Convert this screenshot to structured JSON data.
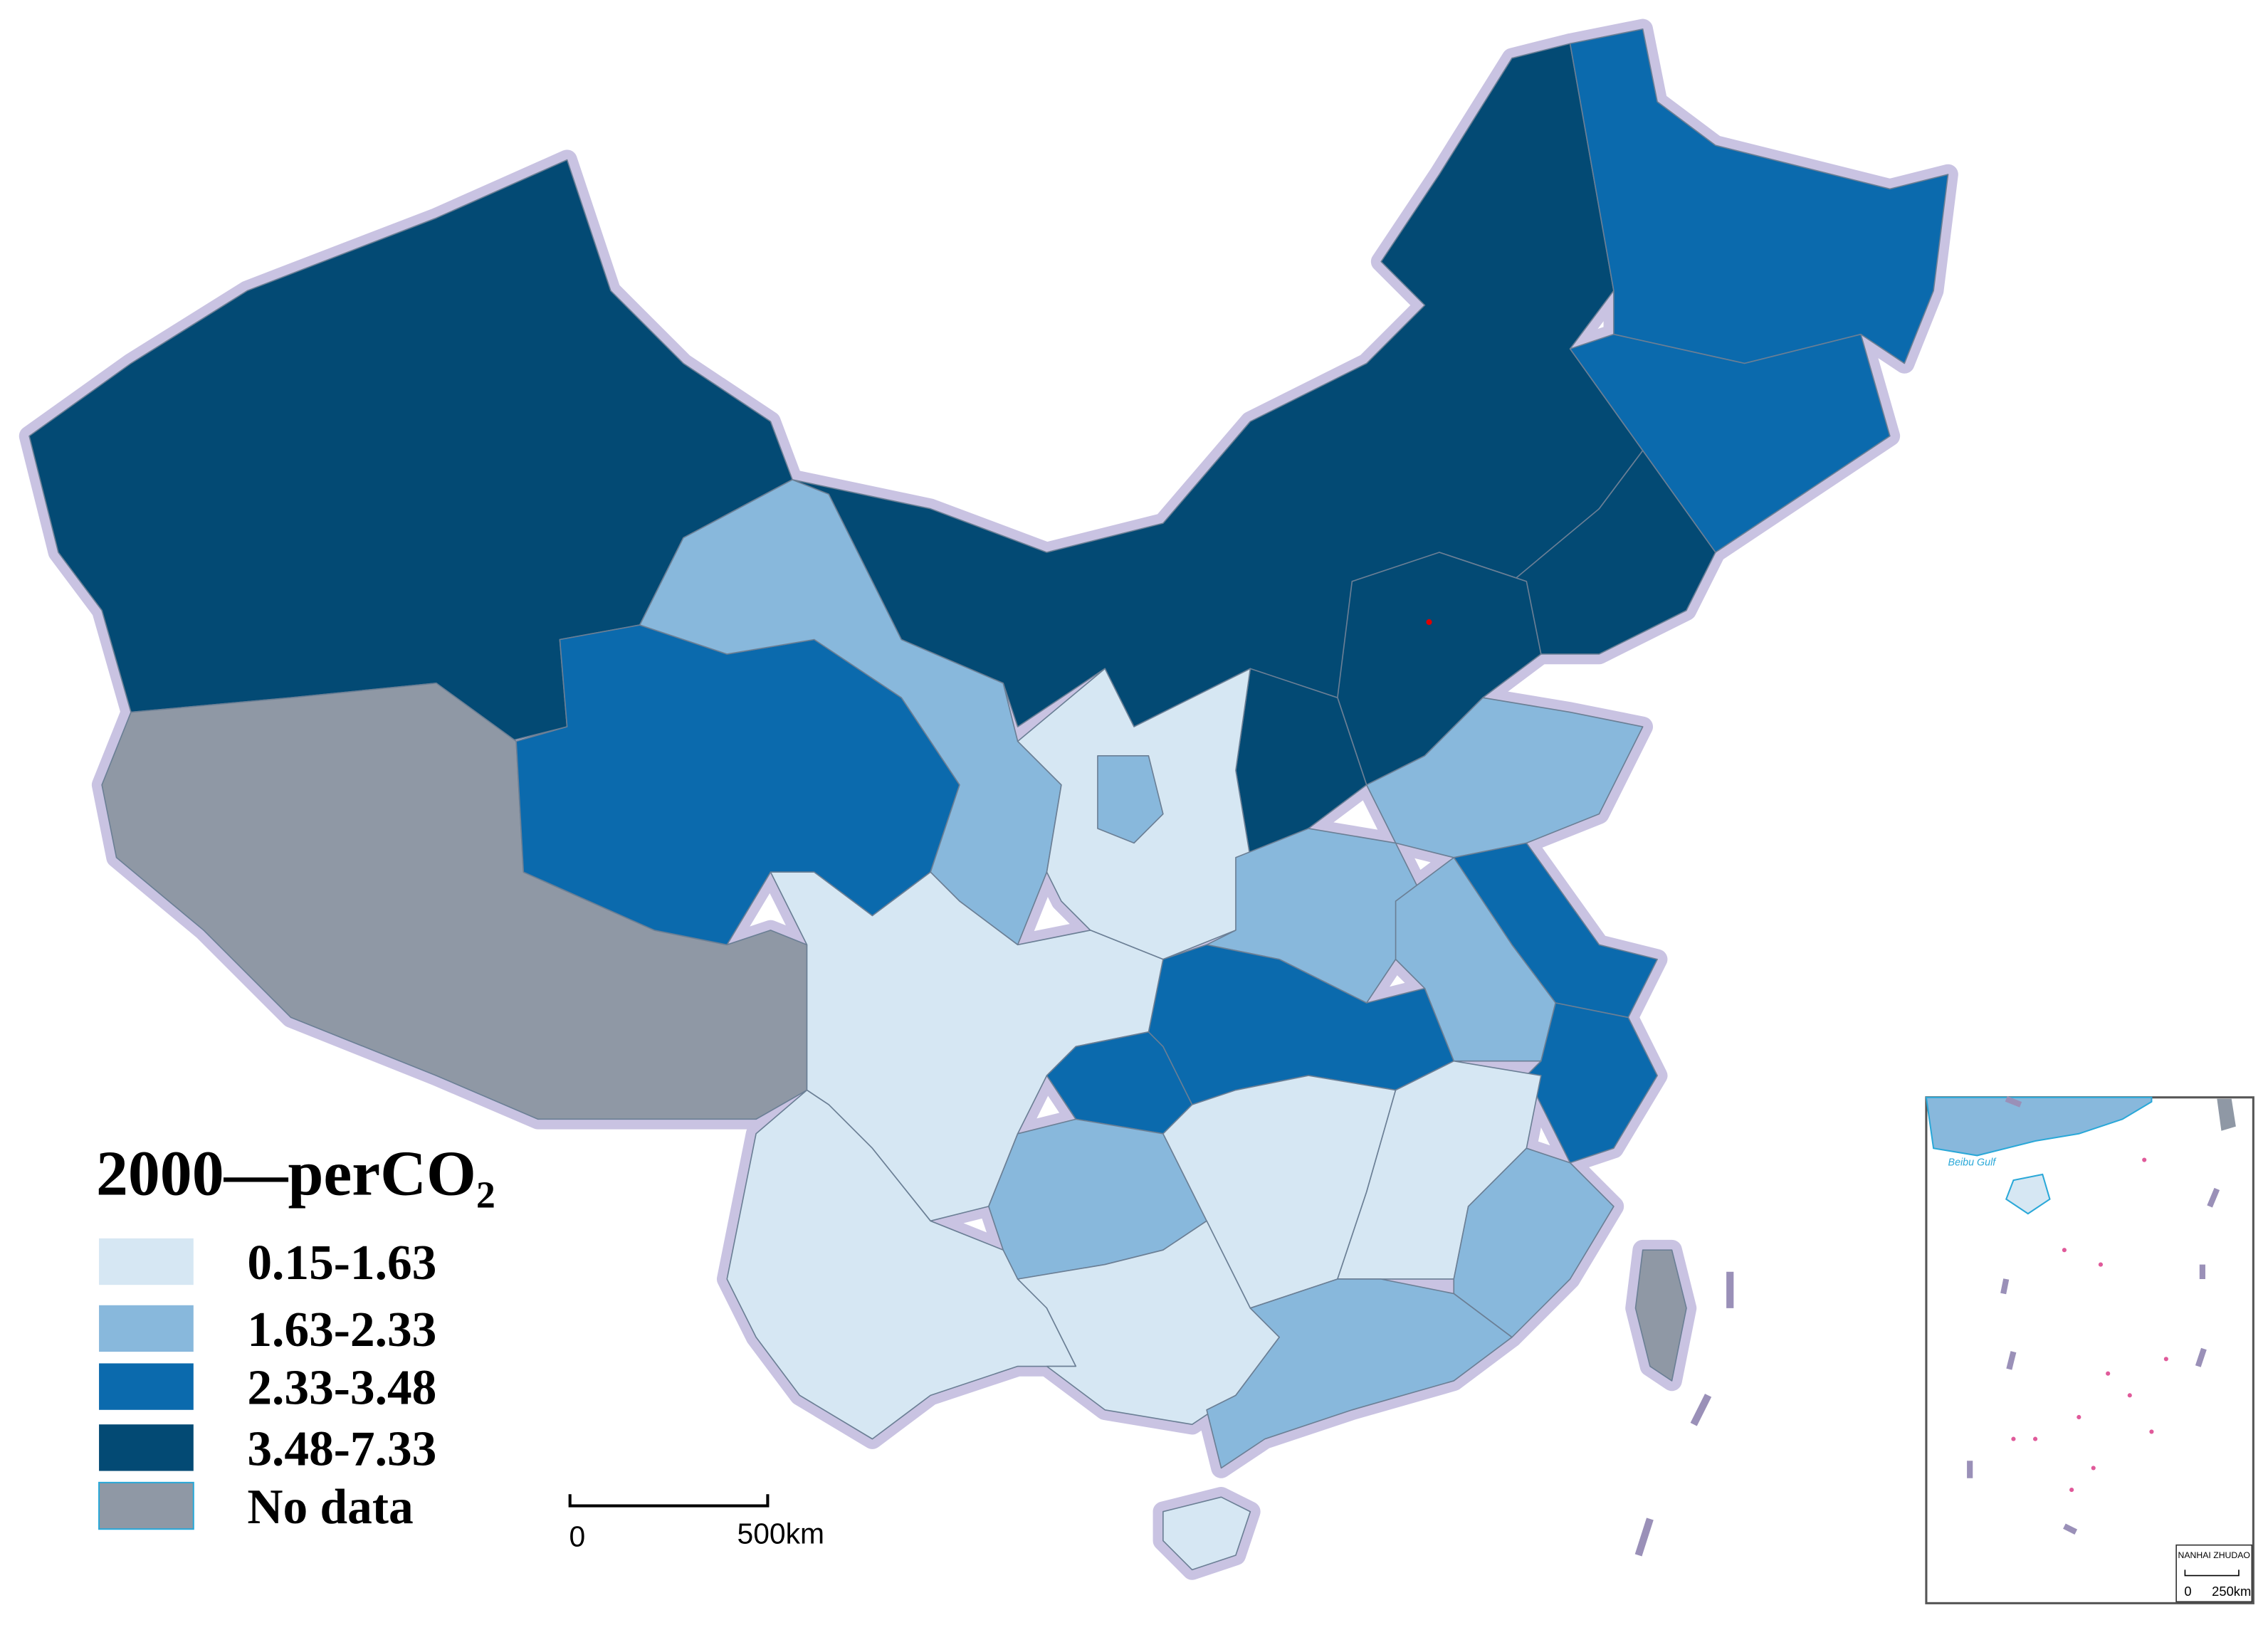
{
  "legend": {
    "title": "2000—perCO₂",
    "items": [
      {
        "label": "0.15-1.63",
        "color": "#d6e7f3"
      },
      {
        "label": "1.63-2.33",
        "color": "#88b8dc"
      },
      {
        "label": "2.33-3.48",
        "color": "#0b6aad"
      },
      {
        "label": "3.48-7.33",
        "color": "#034a74"
      },
      {
        "label": "No data",
        "color": "#8f98a5"
      }
    ]
  },
  "scale_bar": {
    "start": "0",
    "end": "500km"
  },
  "inset": {
    "gulf_label": "Beibu Gulf",
    "title": "NANHAI ZHUDAO",
    "scale_start": "0",
    "scale_end": "250km"
  }
}
